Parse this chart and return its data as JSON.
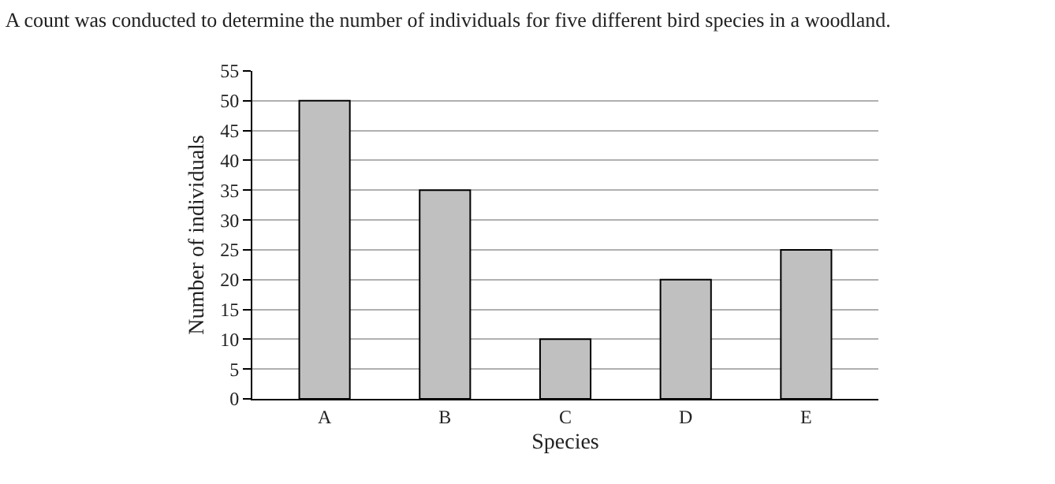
{
  "chart_data": {
    "type": "bar",
    "title": "A count was conducted to determine the number of individuals for five different bird species in a woodland.",
    "xlabel": "Species",
    "ylabel": "Number of individuals",
    "categories": [
      "A",
      "B",
      "C",
      "D",
      "E"
    ],
    "values": [
      50,
      35,
      10,
      20,
      25
    ],
    "color": "#c0c0c0",
    "ylim": [
      0,
      55
    ],
    "yticks": [
      0,
      5,
      10,
      15,
      20,
      25,
      30,
      35,
      40,
      45,
      50,
      55
    ],
    "grid": "y"
  }
}
